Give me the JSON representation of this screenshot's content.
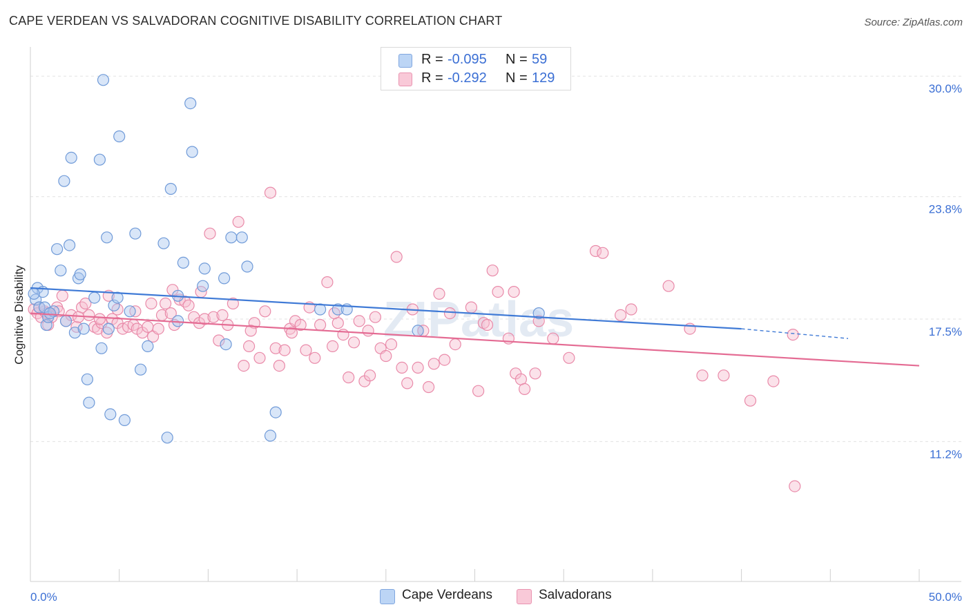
{
  "title": "CAPE VERDEAN VS SALVADORAN COGNITIVE DISABILITY CORRELATION CHART",
  "source": "Source: ZipAtlas.com",
  "watermark": "ZIPatlas",
  "legend": {
    "rows": [
      {
        "r_label": "R =",
        "r_value": "-0.095",
        "n_label": "N =",
        "n_value": "59"
      },
      {
        "r_label": "R =",
        "r_value": "-0.292",
        "n_label": "N =",
        "n_value": "129"
      }
    ],
    "bottom": [
      "Cape Verdeans",
      "Salvadorans"
    ]
  },
  "colors": {
    "blue_fill": "#aac8f0",
    "blue_stroke": "#6f9ad8",
    "blue_line": "#3f7ad6",
    "pink_fill": "#f7bfd0",
    "pink_stroke": "#e98aa9",
    "pink_line": "#e46b93",
    "tick_text": "#3b6fd4",
    "grid": "#e2e2e2"
  },
  "chart_data": {
    "type": "scatter",
    "title": "CAPE VERDEAN VS SALVADORAN COGNITIVE DISABILITY CORRELATION CHART",
    "xlabel": "",
    "ylabel": "Cognitive Disability",
    "xlim": [
      0,
      50
    ],
    "ylim": [
      4.0,
      31.5
    ],
    "x_ticks": [
      "0.0%",
      "50.0%"
    ],
    "y_ticks": [
      {
        "value": 30.0,
        "label": "30.0%"
      },
      {
        "value": 23.8,
        "label": "23.8%"
      },
      {
        "value": 17.5,
        "label": "17.5%"
      },
      {
        "value": 11.2,
        "label": "11.2%"
      }
    ],
    "grid": "horizontal dashed",
    "legend_position": "top-center",
    "series": [
      {
        "name": "Cape Verdeans",
        "trend": {
          "x": [
            0,
            40
          ],
          "y": [
            19.1,
            17.0
          ],
          "dashed_extension_to_x": 46,
          "dashed_extension_y": 16.5
        },
        "points": [
          [
            0.3,
            18.5
          ],
          [
            0.4,
            19.1
          ],
          [
            0.5,
            18.1
          ],
          [
            0.7,
            18.9
          ],
          [
            0.8,
            18.1
          ],
          [
            0.9,
            17.2
          ],
          [
            1.0,
            17.6
          ],
          [
            1.3,
            17.9
          ],
          [
            1.5,
            21.1
          ],
          [
            1.7,
            20.0
          ],
          [
            1.9,
            24.6
          ],
          [
            2.0,
            17.4
          ],
          [
            2.2,
            21.3
          ],
          [
            2.3,
            25.8
          ],
          [
            2.5,
            16.8
          ],
          [
            2.7,
            19.6
          ],
          [
            2.8,
            19.8
          ],
          [
            3.0,
            17.0
          ],
          [
            3.2,
            14.4
          ],
          [
            3.3,
            13.2
          ],
          [
            3.6,
            18.6
          ],
          [
            3.9,
            25.7
          ],
          [
            4.0,
            16.0
          ],
          [
            4.1,
            29.8
          ],
          [
            4.3,
            21.7
          ],
          [
            4.4,
            17.0
          ],
          [
            4.5,
            12.6
          ],
          [
            4.7,
            18.2
          ],
          [
            4.9,
            18.6
          ],
          [
            5.0,
            26.9
          ],
          [
            5.3,
            12.3
          ],
          [
            5.6,
            17.9
          ],
          [
            5.9,
            21.9
          ],
          [
            6.2,
            14.9
          ],
          [
            6.6,
            16.1
          ],
          [
            7.5,
            21.4
          ],
          [
            7.7,
            11.4
          ],
          [
            7.9,
            24.2
          ],
          [
            8.3,
            17.4
          ],
          [
            8.3,
            18.7
          ],
          [
            8.6,
            20.4
          ],
          [
            9.0,
            28.6
          ],
          [
            9.1,
            26.1
          ],
          [
            9.7,
            19.2
          ],
          [
            9.8,
            20.1
          ],
          [
            10.9,
            19.6
          ],
          [
            11.0,
            16.2
          ],
          [
            11.3,
            21.7
          ],
          [
            11.9,
            21.7
          ],
          [
            12.2,
            20.2
          ],
          [
            13.5,
            11.5
          ],
          [
            13.8,
            12.7
          ],
          [
            16.3,
            18.0
          ],
          [
            17.3,
            18.0
          ],
          [
            17.8,
            18.0
          ],
          [
            21.8,
            16.9
          ],
          [
            28.6,
            17.8
          ],
          [
            0.2,
            18.8
          ],
          [
            1.1,
            17.8
          ]
        ]
      },
      {
        "name": "Salvadorans",
        "trend": {
          "x": [
            0,
            50
          ],
          "y": [
            17.8,
            15.1
          ]
        },
        "points": [
          [
            0.2,
            18.0
          ],
          [
            0.4,
            17.8
          ],
          [
            0.6,
            17.6
          ],
          [
            0.8,
            17.9
          ],
          [
            1.0,
            17.2
          ],
          [
            1.2,
            17.6
          ],
          [
            1.5,
            18.1
          ],
          [
            1.8,
            18.7
          ],
          [
            2.0,
            17.4
          ],
          [
            2.3,
            17.7
          ],
          [
            2.6,
            17.1
          ],
          [
            2.9,
            18.1
          ],
          [
            3.1,
            18.3
          ],
          [
            3.3,
            17.7
          ],
          [
            3.6,
            17.1
          ],
          [
            3.8,
            17.0
          ],
          [
            4.0,
            17.3
          ],
          [
            4.3,
            16.8
          ],
          [
            4.4,
            18.7
          ],
          [
            4.6,
            17.5
          ],
          [
            4.9,
            17.3
          ],
          [
            5.2,
            17.0
          ],
          [
            5.5,
            17.1
          ],
          [
            5.8,
            17.2
          ],
          [
            6.0,
            17.0
          ],
          [
            6.3,
            16.8
          ],
          [
            6.6,
            17.1
          ],
          [
            6.9,
            16.6
          ],
          [
            7.2,
            17.0
          ],
          [
            7.4,
            17.7
          ],
          [
            7.6,
            18.3
          ],
          [
            7.9,
            17.8
          ],
          [
            8.1,
            17.2
          ],
          [
            8.4,
            18.5
          ],
          [
            8.7,
            18.4
          ],
          [
            8.9,
            18.2
          ],
          [
            9.2,
            17.6
          ],
          [
            9.5,
            17.3
          ],
          [
            9.8,
            17.5
          ],
          [
            10.1,
            21.9
          ],
          [
            10.3,
            17.6
          ],
          [
            10.6,
            16.4
          ],
          [
            10.8,
            17.7
          ],
          [
            11.1,
            17.2
          ],
          [
            11.4,
            18.3
          ],
          [
            11.7,
            22.5
          ],
          [
            12.0,
            15.1
          ],
          [
            12.3,
            16.1
          ],
          [
            12.6,
            17.3
          ],
          [
            12.9,
            15.5
          ],
          [
            13.2,
            17.9
          ],
          [
            13.5,
            24.0
          ],
          [
            13.8,
            16.0
          ],
          [
            14.0,
            15.1
          ],
          [
            14.3,
            15.9
          ],
          [
            14.6,
            17.0
          ],
          [
            14.9,
            17.4
          ],
          [
            15.2,
            17.2
          ],
          [
            15.5,
            15.9
          ],
          [
            15.7,
            18.1
          ],
          [
            16.0,
            15.5
          ],
          [
            16.3,
            17.2
          ],
          [
            16.7,
            19.4
          ],
          [
            17.0,
            16.1
          ],
          [
            17.3,
            17.3
          ],
          [
            17.6,
            16.7
          ],
          [
            17.9,
            14.5
          ],
          [
            18.2,
            16.3
          ],
          [
            18.5,
            17.4
          ],
          [
            18.8,
            14.3
          ],
          [
            19.1,
            14.6
          ],
          [
            19.4,
            17.6
          ],
          [
            19.7,
            16.0
          ],
          [
            20.0,
            15.6
          ],
          [
            20.3,
            16.2
          ],
          [
            20.6,
            20.7
          ],
          [
            20.9,
            15.0
          ],
          [
            21.2,
            14.2
          ],
          [
            21.5,
            18.0
          ],
          [
            21.8,
            15.0
          ],
          [
            22.1,
            16.9
          ],
          [
            22.4,
            14.0
          ],
          [
            22.7,
            15.2
          ],
          [
            23.0,
            18.8
          ],
          [
            23.3,
            15.4
          ],
          [
            23.6,
            17.8
          ],
          [
            23.9,
            16.2
          ],
          [
            25.2,
            13.8
          ],
          [
            25.5,
            17.3
          ],
          [
            25.7,
            17.2
          ],
          [
            26.0,
            20.0
          ],
          [
            26.3,
            18.9
          ],
          [
            27.2,
            18.9
          ],
          [
            27.3,
            14.7
          ],
          [
            27.6,
            14.4
          ],
          [
            27.8,
            13.9
          ],
          [
            28.4,
            14.7
          ],
          [
            28.6,
            17.4
          ],
          [
            29.4,
            16.5
          ],
          [
            30.3,
            15.5
          ],
          [
            31.8,
            21.0
          ],
          [
            32.2,
            20.9
          ],
          [
            33.2,
            17.7
          ],
          [
            33.8,
            18.0
          ],
          [
            35.9,
            19.2
          ],
          [
            37.1,
            17.0
          ],
          [
            37.8,
            14.6
          ],
          [
            39.0,
            14.6
          ],
          [
            40.5,
            13.3
          ],
          [
            41.8,
            14.3
          ],
          [
            42.9,
            16.7
          ],
          [
            43.0,
            8.9
          ],
          [
            26.9,
            16.5
          ],
          [
            24.8,
            18.1
          ],
          [
            19.0,
            16.9
          ],
          [
            17.1,
            17.8
          ],
          [
            14.7,
            16.8
          ],
          [
            12.4,
            16.9
          ],
          [
            9.6,
            18.9
          ],
          [
            8.0,
            19.0
          ],
          [
            6.8,
            18.3
          ],
          [
            5.9,
            17.9
          ],
          [
            4.9,
            18.0
          ],
          [
            3.9,
            17.5
          ],
          [
            2.7,
            17.6
          ],
          [
            1.6,
            17.9
          ],
          [
            0.9,
            17.8
          ],
          [
            0.5,
            18.1
          ]
        ]
      }
    ]
  }
}
